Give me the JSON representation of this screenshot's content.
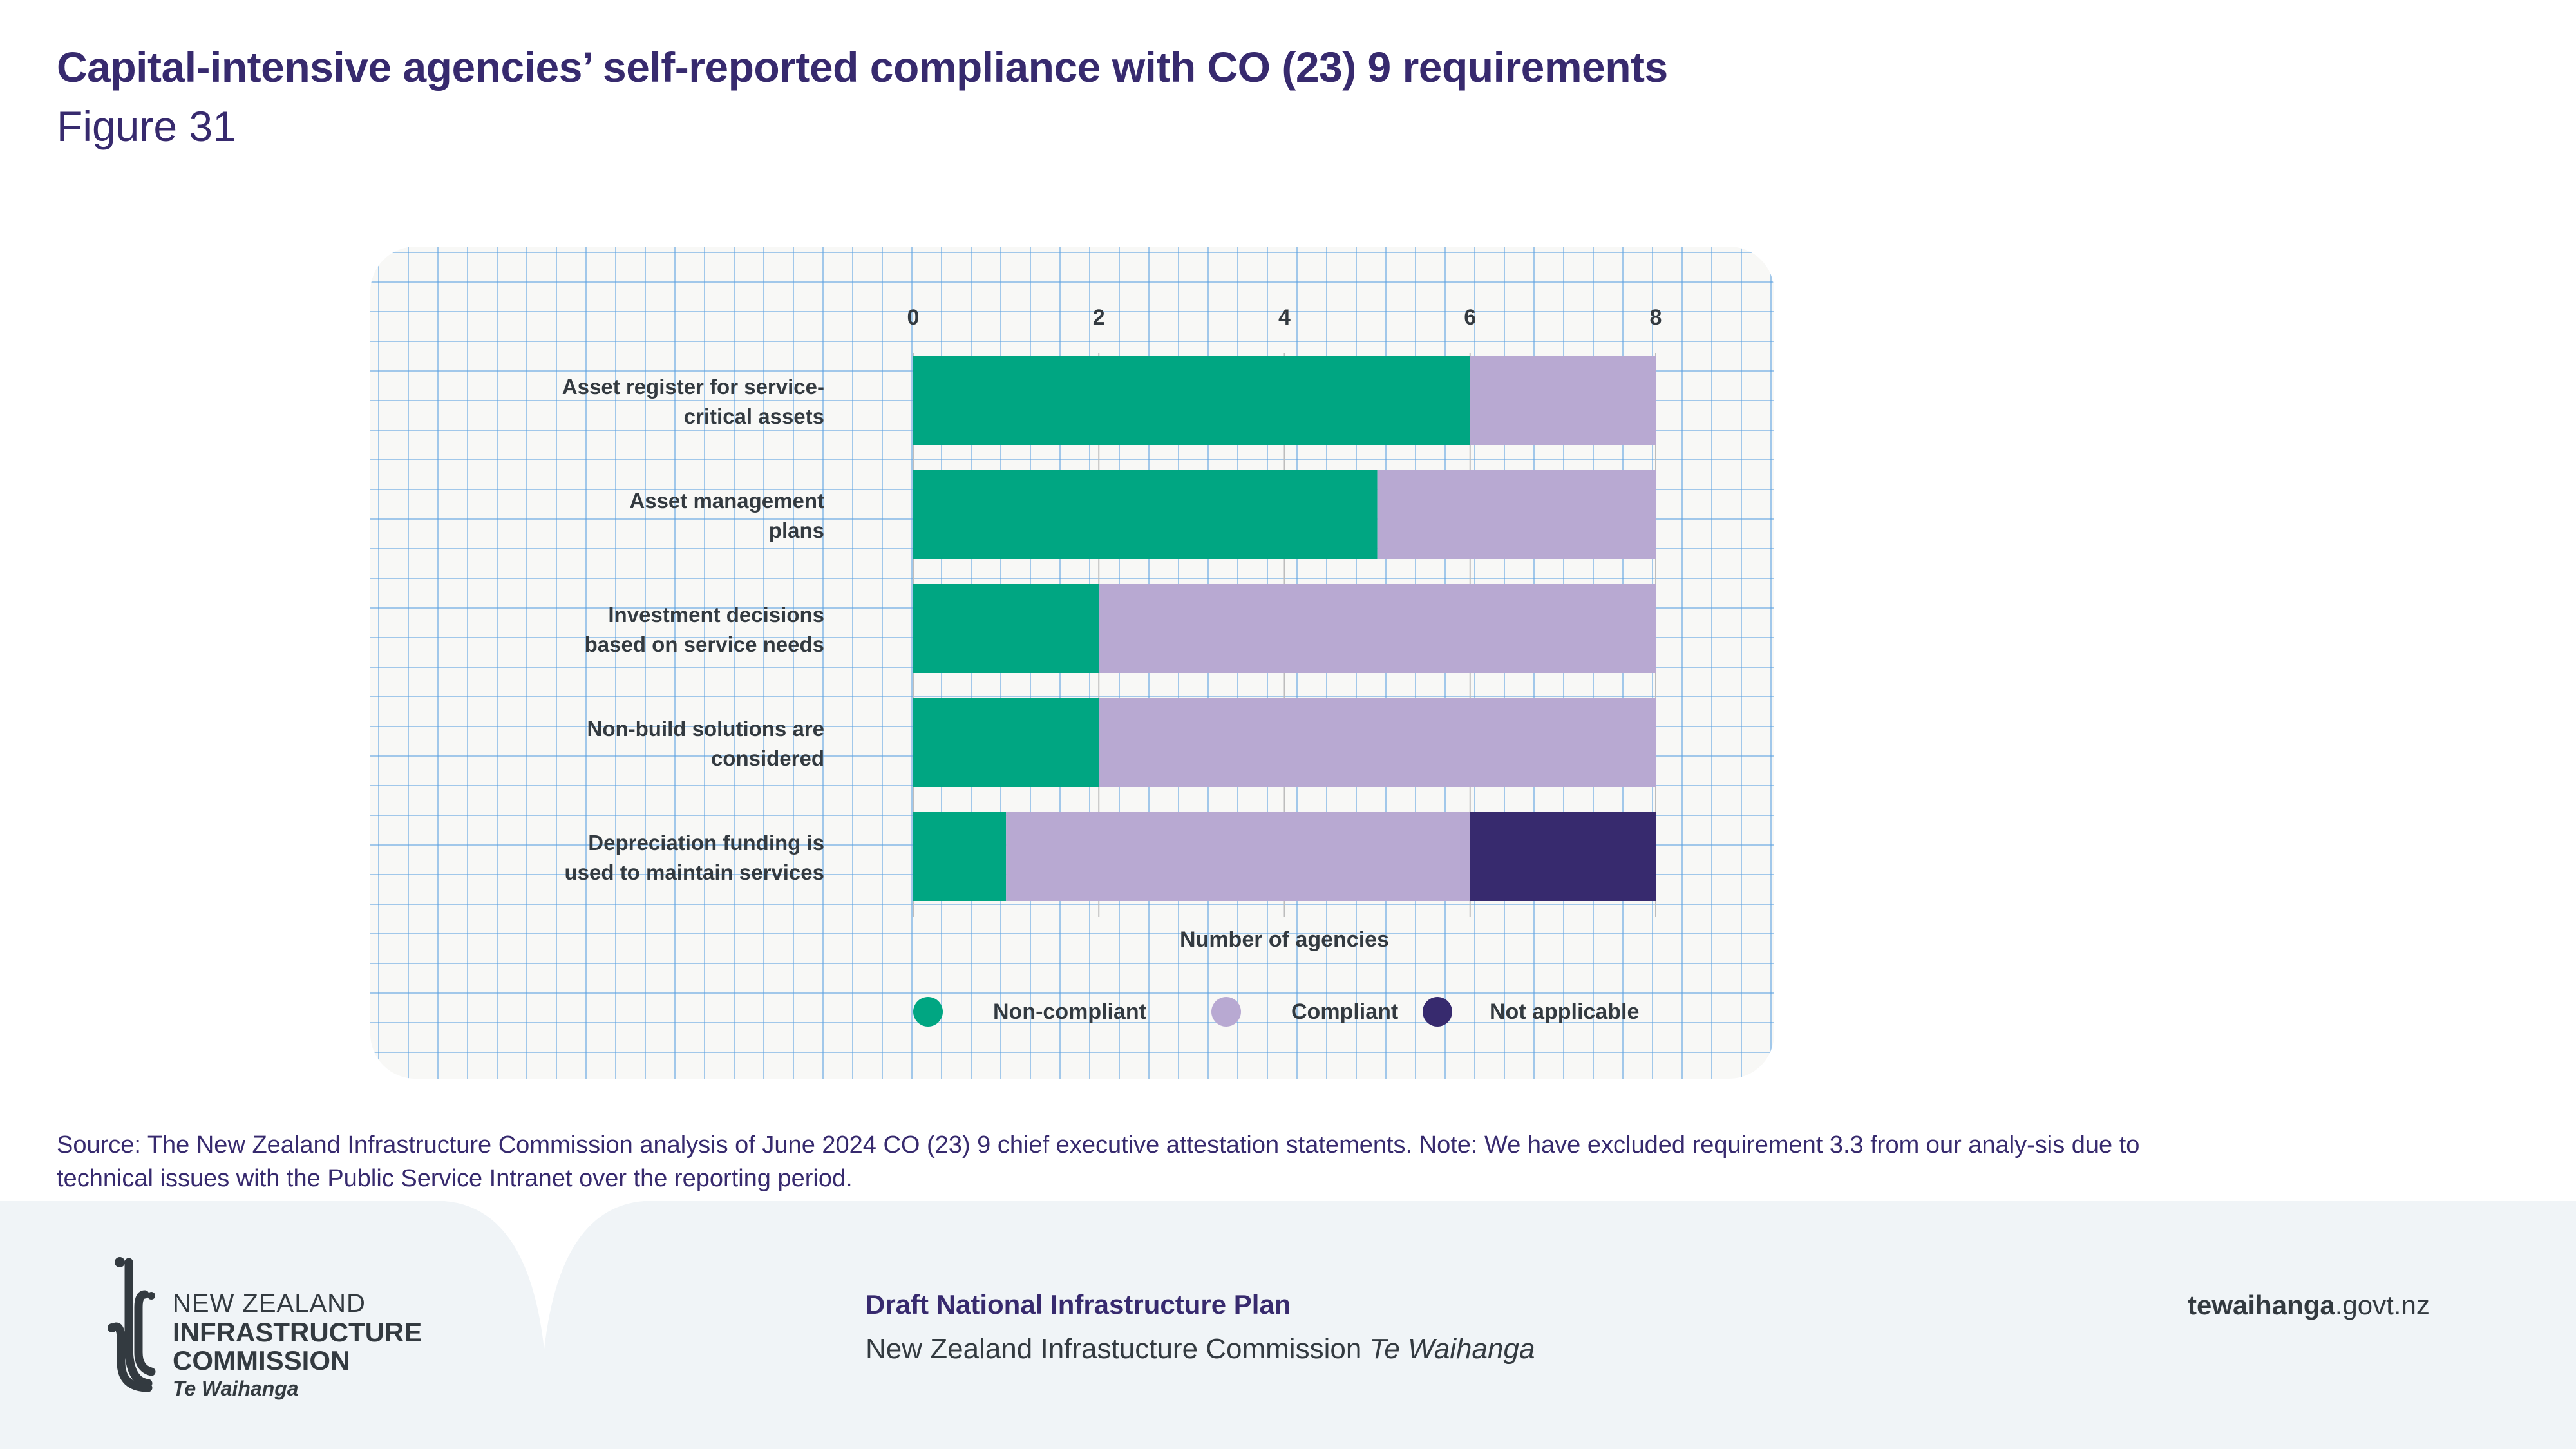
{
  "header": {
    "title": "Capital-intensive agencies’ self-reported compliance with CO (23) 9 requirements",
    "figure_label": "Figure 31"
  },
  "colors": {
    "title": "#372a6e",
    "non_compliant": "#00a682",
    "compliant": "#b8a9d2",
    "not_applicable": "#372a6e",
    "label_text": "#333a40",
    "footer_bg": "#f0f4f7"
  },
  "chart_data": {
    "type": "bar",
    "orientation": "horizontal",
    "stacked": true,
    "title": "Capital-intensive agencies’ self-reported compliance with CO (23) 9 requirements",
    "xlabel": "Number of agencies",
    "ylabel": "",
    "xlim": [
      0,
      8
    ],
    "x_ticks": [
      0,
      2,
      4,
      6,
      8
    ],
    "x_axis_position": "top",
    "grid": true,
    "legend_position": "bottom",
    "categories": [
      "Asset register for service-critical assets",
      "Asset management plans",
      "Investment decisions based on service needs",
      "Non-build solutions are considered",
      "Depreciation funding is used to maintain services"
    ],
    "category_label_lines": [
      [
        "Asset register for service-",
        "critical assets"
      ],
      [
        "Asset management",
        "plans"
      ],
      [
        "Investment decisions",
        "based on service needs"
      ],
      [
        "Non-build solutions are",
        "considered"
      ],
      [
        "Depreciation funding is",
        "used to maintain services"
      ]
    ],
    "series": [
      {
        "name": "Non-compliant",
        "color": "#00a682",
        "values": [
          6,
          5,
          2,
          2,
          1
        ]
      },
      {
        "name": "Compliant",
        "color": "#b8a9d2",
        "values": [
          2,
          3,
          6,
          6,
          5
        ]
      },
      {
        "name": "Not applicable",
        "color": "#372a6e",
        "values": [
          0,
          0,
          0,
          0,
          2
        ]
      }
    ]
  },
  "source_note": "Source: The New Zealand Infrastructure Commission analysis of June 2024 CO (23) 9 chief executive attestation statements. Note: We have excluded requirement 3.3 from our analy-sis due to technical issues with the Public Service Intranet over the reporting period.",
  "footer": {
    "logo": {
      "line1": "NEW ZEALAND",
      "line2": "INFRASTRUCTURE",
      "line3": "COMMISSION",
      "line4": "Te Waihanga"
    },
    "document_title": "Draft National Infrastructure Plan",
    "organisation": "New Zealand Infrastucture Commission",
    "organisation_maori": "Te Waihanga",
    "website_bold": "tewaihanga",
    "website_rest": ".govt.nz"
  }
}
